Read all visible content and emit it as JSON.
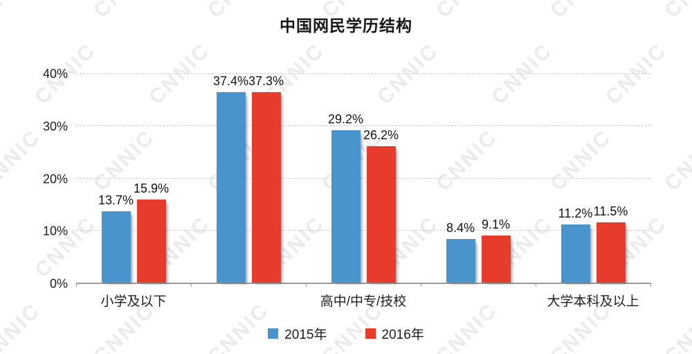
{
  "title": "中国网民学历结构",
  "watermark": "CNNIC",
  "chart_data": {
    "type": "bar",
    "title": "中国网民学历结构",
    "categories": [
      "小学及以下",
      "",
      "高中/中专/技校",
      "",
      "大学本科及以上"
    ],
    "series": [
      {
        "name": "2015年",
        "color": "#4a94ce",
        "values": [
          13.7,
          37.4,
          29.2,
          8.4,
          11.2
        ]
      },
      {
        "name": "2016年",
        "color": "#e73b2c",
        "values": [
          15.9,
          37.3,
          26.2,
          9.1,
          11.5
        ]
      }
    ],
    "ylim": [
      0,
      40
    ],
    "yticks": [
      "0%",
      "10%",
      "20%",
      "30%",
      "40%"
    ],
    "grid": "horizontal-dashed",
    "legend_position": "bottom",
    "value_label_suffix": "%"
  }
}
